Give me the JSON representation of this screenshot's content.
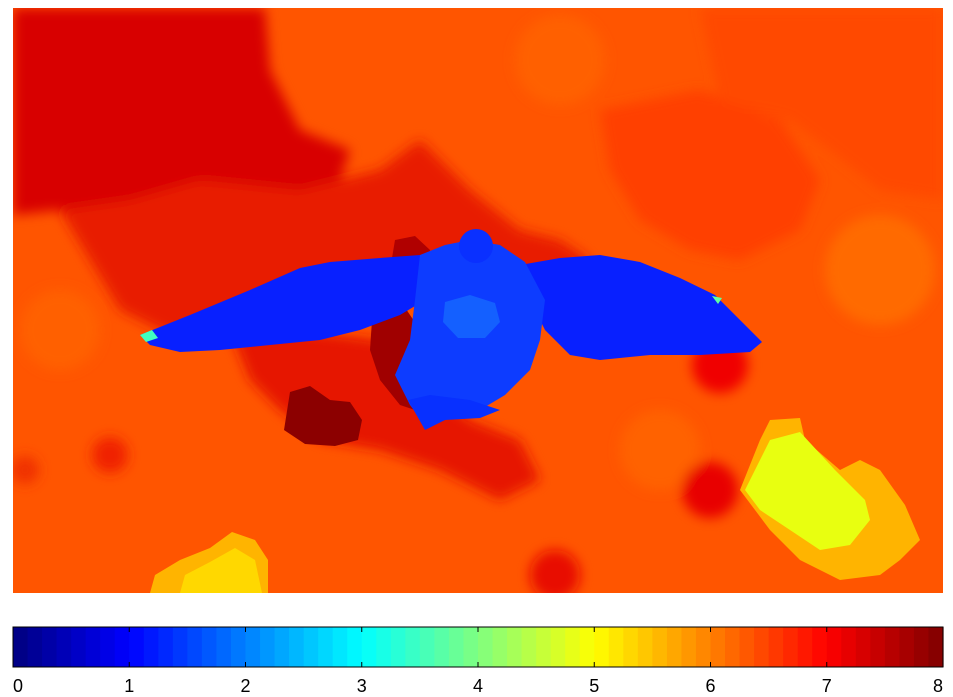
{
  "chart_data": {
    "type": "heatmap",
    "title": "",
    "xlabel": "",
    "ylabel": "",
    "image_axes_visible": false,
    "colormap": "jet",
    "colorbar": {
      "placement": "bottom",
      "orientation": "horizontal",
      "range": [
        0,
        8
      ],
      "ticks": [
        0,
        1,
        2,
        3,
        4,
        5,
        6,
        7,
        8
      ],
      "tick_labels": [
        "0",
        "1",
        "2",
        "3",
        "4",
        "5",
        "6",
        "7",
        "8"
      ],
      "levels": 64
    },
    "regions": [
      {
        "name": "background",
        "value": 6.2
      },
      {
        "name": "upper-left area",
        "value": 7.1
      },
      {
        "name": "bird body and wings",
        "value": 1.0
      },
      {
        "name": "bird chest highlight",
        "value": 1.4
      },
      {
        "name": "dark patch below left wing",
        "value": 7.8
      },
      {
        "name": "bottom-left patch",
        "value": 5.0
      },
      {
        "name": "bottom-right patch",
        "value": 4.6
      }
    ]
  }
}
